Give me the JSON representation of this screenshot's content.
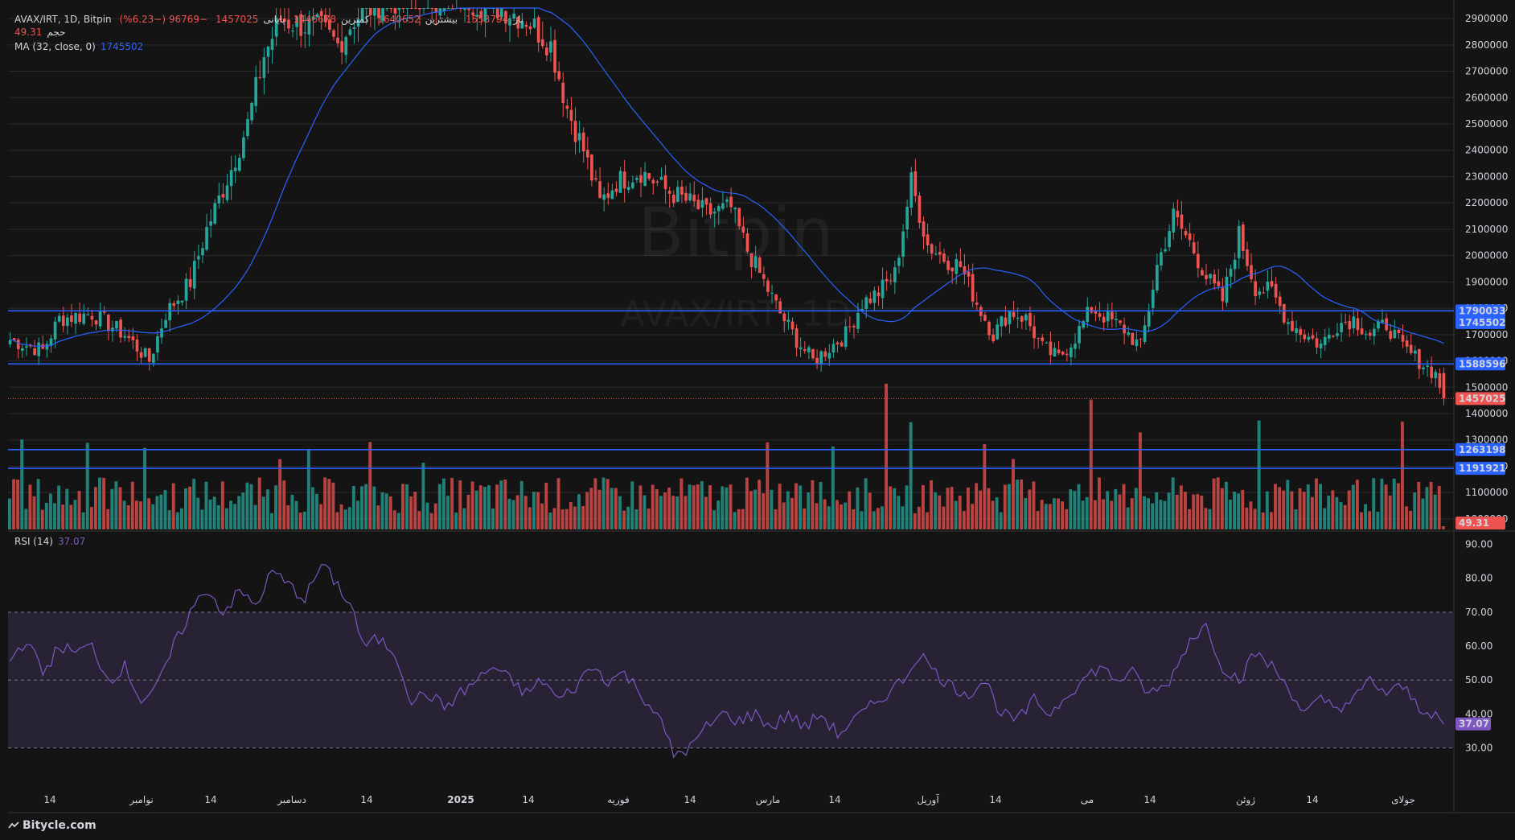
{
  "legend": {
    "symbol": "AVAX/IRT, 1D, Bitpin",
    "open_label": "باز",
    "open_value": "1553794",
    "high_label": "بیشترین",
    "high_value": "1640652",
    "low_label": "کمترین",
    "low_value": "1446678",
    "close_label": "پایانی",
    "close_value": "1457025",
    "change": "−96769 (−6.23%)",
    "volume_label": "حجم",
    "volume_value": "49.31",
    "ma_label": "MA (32, close, 0)",
    "ma_value": "1745502",
    "rsi_label": "RSI (14)",
    "rsi_value": "37.07"
  },
  "watermark": {
    "line1": "Bitpin",
    "line2": "AVAX/IRT, 1D"
  },
  "footer": {
    "brand": "Bitycle.com"
  },
  "colors": {
    "background": "#141414",
    "up": "#26a69a",
    "down": "#ef5350",
    "ma": "#2962ff",
    "hline": "#2962ff",
    "rsi": "#7e57c2",
    "rsi_band": "#2a2438",
    "grid": "#2a2a2a"
  },
  "chart_data": [
    {
      "type": "candlestick",
      "name": "price",
      "price_axis": [
        "2900000",
        "2800000",
        "2700000",
        "2600000",
        "2500000",
        "2400000",
        "2300000",
        "2200000",
        "2100000",
        "2000000",
        "1900000",
        "1800000",
        "1700000",
        "1600000",
        "1500000",
        "1400000",
        "1300000",
        "1200000",
        "1100000",
        "1000000"
      ],
      "ylim": [
        960000,
        2940000
      ],
      "time_axis": [
        "14",
        "نوامبر",
        "14",
        "دسامبر",
        "14",
        "2025",
        "14",
        "فوریه",
        "14",
        "مارس",
        "14",
        "آوریل",
        "14",
        "می",
        "14",
        "ژوئن",
        "14",
        "جولای"
      ],
      "horizontal_levels": [
        {
          "value": 1790033,
          "label": "1790033"
        },
        {
          "value": 1588596,
          "label": "1588596"
        },
        {
          "value": 1263198,
          "label": "1263198"
        },
        {
          "value": 1191921,
          "label": "1191921"
        }
      ],
      "price_tags": [
        {
          "value": 1745502,
          "label": "1745502",
          "color": "#2962ff"
        },
        {
          "value": 1457025,
          "label": "1457025",
          "color": "#ef5350"
        },
        {
          "value": 984000,
          "label": "49.31",
          "color": "#ef5350"
        }
      ],
      "close_anchors": [
        [
          0,
          1680000
        ],
        [
          8,
          1640000
        ],
        [
          12,
          1760000
        ],
        [
          20,
          1780000
        ],
        [
          28,
          1700000
        ],
        [
          34,
          1600000
        ],
        [
          38,
          1780000
        ],
        [
          44,
          1900000
        ],
        [
          48,
          2100000
        ],
        [
          54,
          2330000
        ],
        [
          58,
          2500000
        ],
        [
          62,
          2760000
        ],
        [
          66,
          2900000
        ],
        [
          70,
          2880000
        ],
        [
          76,
          2860000
        ],
        [
          80,
          2800000
        ],
        [
          84,
          2900000
        ],
        [
          90,
          2960000
        ],
        [
          100,
          2980000
        ],
        [
          110,
          2980000
        ],
        [
          120,
          2940000
        ],
        [
          126,
          2900000
        ],
        [
          132,
          2800000
        ],
        [
          136,
          2560000
        ],
        [
          140,
          2400000
        ],
        [
          144,
          2200000
        ],
        [
          148,
          2280000
        ],
        [
          154,
          2320000
        ],
        [
          160,
          2250000
        ],
        [
          166,
          2200000
        ],
        [
          170,
          2160000
        ],
        [
          176,
          2180000
        ],
        [
          180,
          2020000
        ],
        [
          184,
          1900000
        ],
        [
          188,
          1780000
        ],
        [
          192,
          1680000
        ],
        [
          196,
          1600000
        ],
        [
          200,
          1650000
        ],
        [
          204,
          1700000
        ],
        [
          208,
          1820000
        ],
        [
          212,
          1860000
        ],
        [
          216,
          1930000
        ],
        [
          220,
          2280000
        ],
        [
          224,
          2040000
        ],
        [
          228,
          1990000
        ],
        [
          232,
          1960000
        ],
        [
          236,
          1820000
        ],
        [
          240,
          1700000
        ],
        [
          244,
          1790000
        ],
        [
          248,
          1760000
        ],
        [
          252,
          1650000
        ],
        [
          256,
          1610000
        ],
        [
          260,
          1690000
        ],
        [
          264,
          1800000
        ],
        [
          268,
          1760000
        ],
        [
          272,
          1720000
        ],
        [
          276,
          1650000
        ],
        [
          280,
          1960000
        ],
        [
          284,
          2150000
        ],
        [
          288,
          2050000
        ],
        [
          292,
          1920000
        ],
        [
          296,
          1830000
        ],
        [
          300,
          2080000
        ],
        [
          304,
          1880000
        ],
        [
          308,
          1860000
        ],
        [
          312,
          1750000
        ],
        [
          316,
          1700000
        ],
        [
          320,
          1660000
        ],
        [
          324,
          1740000
        ],
        [
          328,
          1760000
        ],
        [
          332,
          1700000
        ],
        [
          336,
          1740000
        ],
        [
          340,
          1650000
        ],
        [
          344,
          1600000
        ],
        [
          348,
          1550000
        ],
        [
          350,
          1460000
        ]
      ],
      "ma": {
        "period": 32,
        "last": 1745502
      },
      "volume_max_display": 1.0
    },
    {
      "type": "line",
      "name": "rsi",
      "y_axis": [
        "90.00",
        "80.00",
        "70.00",
        "60.00",
        "50.00",
        "40.00",
        "30.00"
      ],
      "ylim": [
        28,
        92
      ],
      "band": [
        30,
        70
      ],
      "midline": 50,
      "last": 37.07,
      "anchors": [
        [
          0,
          56
        ],
        [
          4,
          62
        ],
        [
          8,
          52
        ],
        [
          12,
          60
        ],
        [
          16,
          58
        ],
        [
          20,
          60
        ],
        [
          24,
          50
        ],
        [
          28,
          54
        ],
        [
          32,
          44
        ],
        [
          36,
          48
        ],
        [
          40,
          60
        ],
        [
          44,
          70
        ],
        [
          48,
          77
        ],
        [
          52,
          70
        ],
        [
          56,
          76
        ],
        [
          60,
          72
        ],
        [
          64,
          82
        ],
        [
          68,
          78
        ],
        [
          72,
          74
        ],
        [
          76,
          84
        ],
        [
          80,
          78
        ],
        [
          84,
          70
        ],
        [
          86,
          60
        ],
        [
          90,
          62
        ],
        [
          94,
          58
        ],
        [
          98,
          44
        ],
        [
          102,
          46
        ],
        [
          106,
          42
        ],
        [
          110,
          46
        ],
        [
          114,
          50
        ],
        [
          118,
          54
        ],
        [
          122,
          50
        ],
        [
          126,
          46
        ],
        [
          130,
          50
        ],
        [
          134,
          44
        ],
        [
          138,
          48
        ],
        [
          142,
          54
        ],
        [
          146,
          50
        ],
        [
          150,
          52
        ],
        [
          154,
          46
        ],
        [
          158,
          40
        ],
        [
          160,
          34
        ],
        [
          162,
          28
        ],
        [
          166,
          30
        ],
        [
          170,
          36
        ],
        [
          174,
          40
        ],
        [
          178,
          38
        ],
        [
          182,
          40
        ],
        [
          186,
          36
        ],
        [
          190,
          40
        ],
        [
          194,
          36
        ],
        [
          198,
          40
        ],
        [
          202,
          34
        ],
        [
          206,
          38
        ],
        [
          210,
          42
        ],
        [
          214,
          46
        ],
        [
          218,
          50
        ],
        [
          222,
          58
        ],
        [
          226,
          52
        ],
        [
          230,
          48
        ],
        [
          234,
          46
        ],
        [
          238,
          50
        ],
        [
          242,
          40
        ],
        [
          246,
          38
        ],
        [
          250,
          44
        ],
        [
          254,
          40
        ],
        [
          258,
          46
        ],
        [
          262,
          50
        ],
        [
          266,
          54
        ],
        [
          270,
          50
        ],
        [
          274,
          52
        ],
        [
          278,
          46
        ],
        [
          282,
          48
        ],
        [
          284,
          52
        ],
        [
          288,
          62
        ],
        [
          292,
          66
        ],
        [
          296,
          54
        ],
        [
          300,
          50
        ],
        [
          304,
          58
        ],
        [
          308,
          54
        ],
        [
          312,
          48
        ],
        [
          316,
          40
        ],
        [
          320,
          44
        ],
        [
          324,
          42
        ],
        [
          328,
          44
        ],
        [
          332,
          50
        ],
        [
          336,
          46
        ],
        [
          340,
          48
        ],
        [
          344,
          42
        ],
        [
          348,
          40
        ],
        [
          350,
          37
        ]
      ]
    }
  ]
}
